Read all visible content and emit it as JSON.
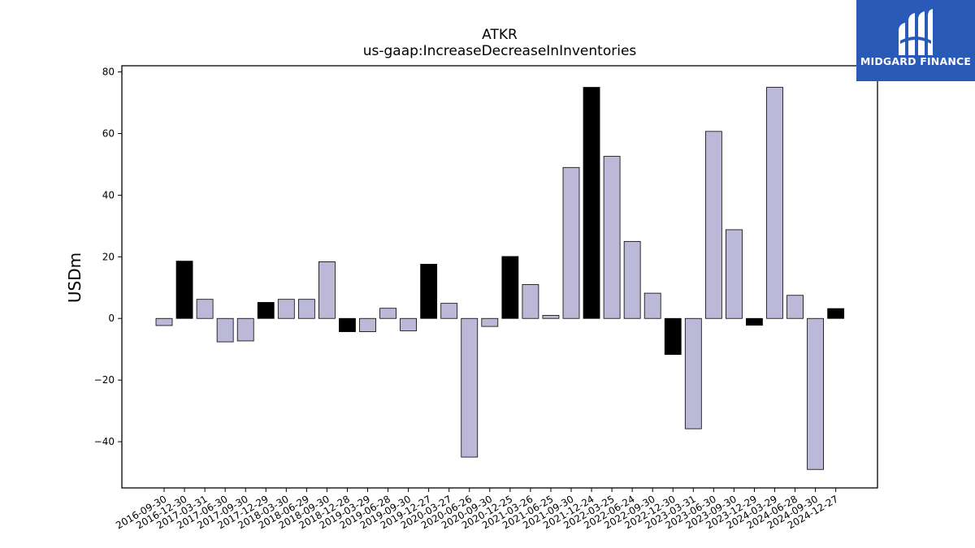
{
  "chart_data": {
    "type": "bar",
    "title": "ATKR",
    "subtitle": "us-gaap:IncreaseDecreaseInInventories",
    "xlabel": "",
    "ylabel": "USDm",
    "ylim": [
      -55,
      82
    ],
    "yticks": [
      -40,
      -20,
      0,
      20,
      40,
      60,
      80
    ],
    "ytick_labels": [
      "−40",
      "−20",
      "0",
      "20",
      "40",
      "60",
      "80"
    ],
    "grid": false,
    "colors": {
      "q4": "#000000",
      "other": "#bcb9d8",
      "edge": "#000000"
    },
    "categories": [
      "2016-09-30",
      "2016-12-30",
      "2017-03-31",
      "2017-06-30",
      "2017-09-30",
      "2017-12-29",
      "2018-03-30",
      "2018-06-29",
      "2018-09-30",
      "2018-12-28",
      "2019-03-29",
      "2019-06-28",
      "2019-09-30",
      "2019-12-27",
      "2020-03-27",
      "2020-06-26",
      "2020-09-30",
      "2020-12-25",
      "2021-03-26",
      "2021-06-25",
      "2021-09-30",
      "2021-12-24",
      "2022-03-25",
      "2022-06-24",
      "2022-09-30",
      "2022-12-30",
      "2023-03-31",
      "2023-06-30",
      "2023-09-30",
      "2023-12-29",
      "2024-03-29",
      "2024-06-28",
      "2024-09-30",
      "2024-12-27"
    ],
    "values": [
      -2.3,
      18.6,
      6.2,
      -7.6,
      -7.3,
      5.2,
      6.2,
      6.2,
      18.4,
      -4.3,
      -4.3,
      3.3,
      -4.0,
      17.6,
      4.9,
      -45.0,
      -2.6,
      20.1,
      11.0,
      1.0,
      49.0,
      75.0,
      52.6,
      25.0,
      8.2,
      -11.7,
      -35.8,
      60.7,
      28.8,
      -2.2,
      75.0,
      7.5,
      -49.0,
      3.2
    ],
    "highlight": [
      false,
      true,
      false,
      false,
      false,
      true,
      false,
      false,
      false,
      true,
      false,
      false,
      false,
      true,
      false,
      false,
      false,
      true,
      false,
      false,
      false,
      true,
      false,
      false,
      false,
      true,
      false,
      false,
      false,
      true,
      false,
      false,
      false,
      true
    ]
  },
  "logo": {
    "text": "MIDGARD FINANCE"
  }
}
